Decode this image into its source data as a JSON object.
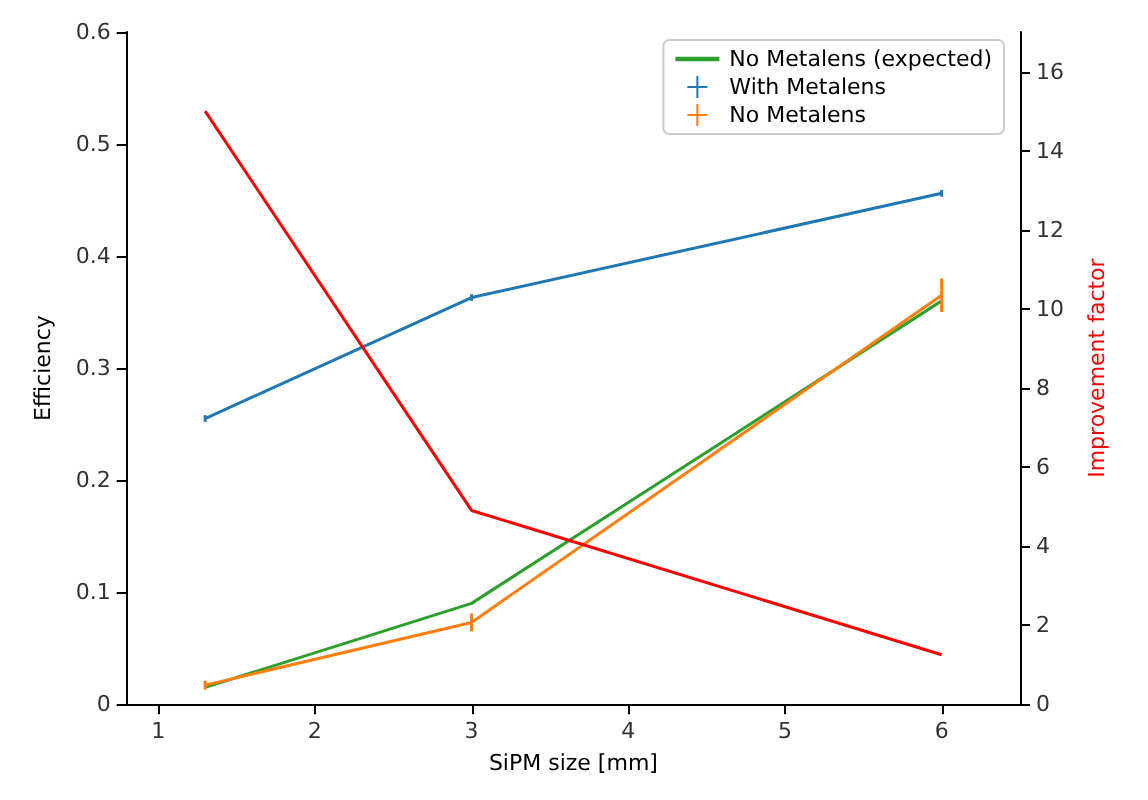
{
  "chart_data": {
    "type": "line",
    "xlabel": "SiPM size [mm]",
    "ylabel": "Efficiency",
    "y2label": "Improvement factor",
    "x": [
      1.3,
      3,
      6
    ],
    "series": [
      {
        "name": "No Metalens (expected)",
        "color": "#2ca02c",
        "values": [
          0.015,
          0.09,
          0.36
        ]
      },
      {
        "name": "With Metalens",
        "color": "#1f77b4",
        "values": [
          0.255,
          0.363,
          0.456
        ],
        "errors": [
          0.003,
          0.003,
          0.003
        ]
      },
      {
        "name": "No Metalens",
        "color": "#ff7f0e",
        "values": [
          0.017,
          0.073,
          0.365
        ],
        "errors": [
          0.004,
          0.008,
          0.015
        ]
      },
      {
        "color": "#ff0000",
        "axis": "y2",
        "values": [
          15,
          4.9,
          1.25
        ]
      }
    ],
    "xlim": [
      0.8,
      6.5
    ],
    "xticks": [
      1,
      2,
      3,
      4,
      5,
      6
    ],
    "ylim": [
      0,
      0.6
    ],
    "yticks": [
      0,
      0.1,
      0.2,
      0.3,
      0.4,
      0.5,
      0.6
    ],
    "y2lim": [
      0,
      17
    ],
    "y2ticks": [
      0,
      2,
      4,
      6,
      8,
      10,
      12,
      14,
      16
    ],
    "grid": false,
    "legend": "top right",
    "marker": "none",
    "line_style": "solid"
  }
}
